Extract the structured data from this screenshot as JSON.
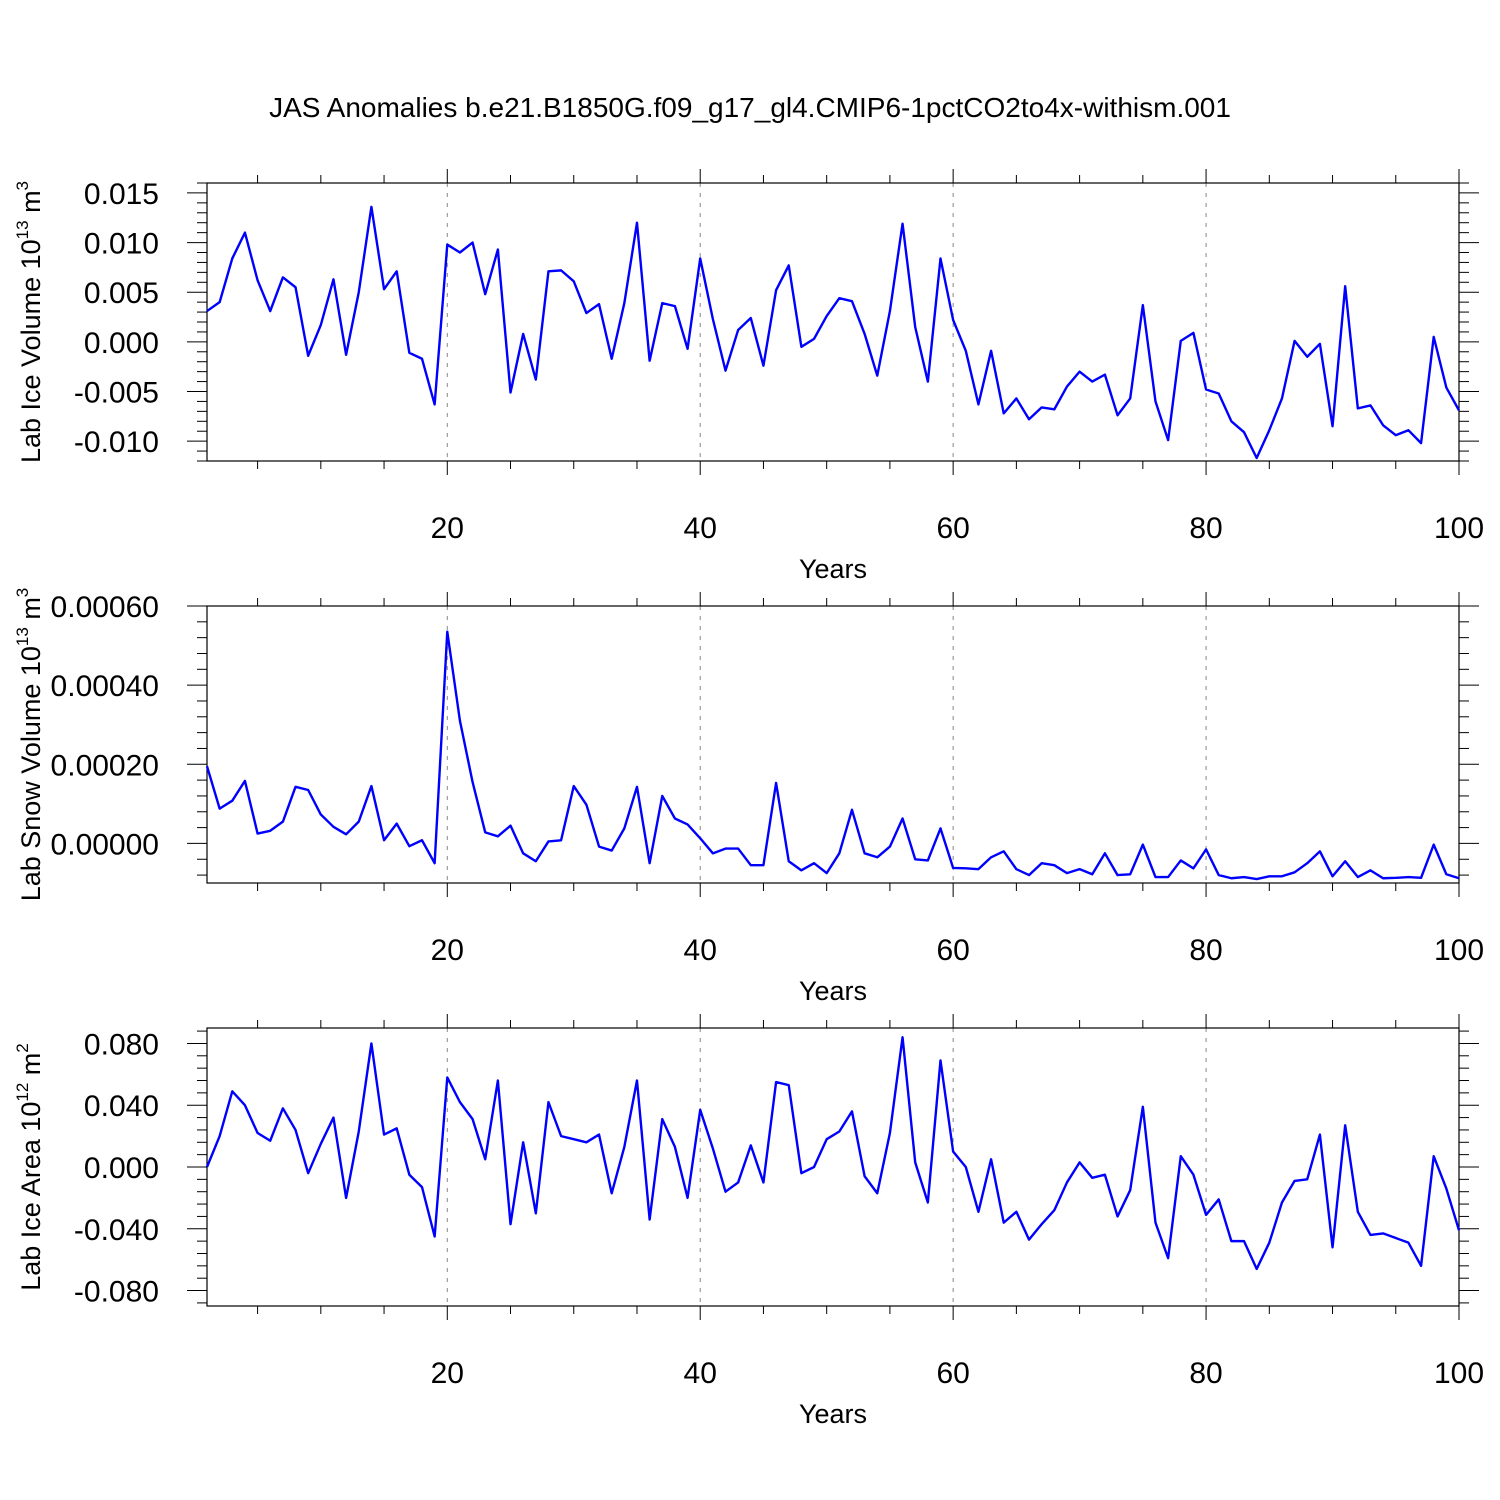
{
  "title": "JAS Anomalies b.e21.B1850G.f09_g17_gl4.CMIP6-1pctCO2to4x-withism.001",
  "colors": {
    "line": "#0000ff",
    "grid": "#888888",
    "axis": "#000000"
  },
  "chart_data": [
    {
      "type": "line",
      "ylabel": "Lab Ice Volume 10",
      "ylabel_sup": "13",
      "ylabel_unit": " m",
      "ylabel_unit_sup": "3",
      "xlabel": "Years",
      "xlim": [
        1,
        100
      ],
      "ylim": [
        -0.012,
        0.016
      ],
      "xticks": [
        20,
        40,
        60,
        80,
        100
      ],
      "xtick_labels": [
        "20",
        "40",
        "60",
        "80",
        "100"
      ],
      "yticks": [
        -0.01,
        -0.005,
        0.0,
        0.005,
        0.01,
        0.015
      ],
      "ytick_labels": [
        "-0.010",
        "-0.005",
        "0.000",
        "0.005",
        "0.010",
        "0.015"
      ],
      "grid": "vertical dashed at x ticks",
      "series": [
        {
          "x": [
            1,
            2,
            3,
            4,
            5,
            6,
            7,
            8,
            9,
            10,
            11,
            12,
            13,
            14,
            15,
            16,
            17,
            18,
            19,
            20,
            21,
            22,
            23,
            24,
            25,
            26,
            27,
            28,
            29,
            30,
            31,
            32,
            33,
            34,
            35,
            36,
            37,
            38,
            39,
            40,
            41,
            42,
            43,
            44,
            45,
            46,
            47,
            48,
            49,
            50,
            51,
            52,
            53,
            54,
            55,
            56,
            57,
            58,
            59,
            60,
            61,
            62,
            63,
            64,
            65,
            66,
            67,
            68,
            69,
            70,
            71,
            72,
            73,
            74,
            75,
            76,
            77,
            78,
            79,
            80,
            81,
            82,
            83,
            84,
            85,
            86,
            87,
            88,
            89,
            90,
            91,
            92,
            93,
            94,
            95,
            96,
            97,
            98,
            99,
            100
          ],
          "values": [
            0.0031,
            0.004,
            0.0084,
            0.011,
            0.0062,
            0.0031,
            0.0065,
            0.0055,
            -0.0014,
            0.0017,
            0.0063,
            -0.0013,
            0.005,
            0.0136,
            0.0053,
            0.0071,
            -0.0011,
            -0.0017,
            -0.0063,
            0.0098,
            0.009,
            0.01,
            0.0048,
            0.0093,
            -0.0051,
            0.0008,
            -0.0038,
            0.0071,
            0.0072,
            0.0061,
            0.0029,
            0.0038,
            -0.0017,
            0.0039,
            0.012,
            -0.0019,
            0.0039,
            0.0036,
            -0.0007,
            0.0084,
            0.0023,
            -0.0029,
            0.0012,
            0.0024,
            -0.0024,
            0.0052,
            0.0077,
            -0.0005,
            0.0003,
            0.0026,
            0.0044,
            0.0041,
            0.0008,
            -0.0034,
            0.0031,
            0.0119,
            0.0015,
            -0.004,
            0.0084,
            0.0022,
            -0.0009,
            -0.0063,
            -0.0009,
            -0.0072,
            -0.0057,
            -0.0078,
            -0.0066,
            -0.0068,
            -0.0045,
            -0.003,
            -0.004,
            -0.0033,
            -0.0074,
            -0.0057,
            0.0037,
            -0.006,
            -0.0099,
            0.0001,
            0.0009,
            -0.0048,
            -0.0052,
            -0.008,
            -0.0091,
            -0.0117,
            -0.0089,
            -0.0057,
            0.0001,
            -0.0015,
            -0.0002,
            -0.0085,
            0.0056,
            -0.0067,
            -0.0064,
            -0.0084,
            -0.0094,
            -0.0089,
            -0.0102,
            0.0005,
            -0.0046,
            -0.0069
          ]
        }
      ]
    },
    {
      "type": "line",
      "ylabel": "Lab Snow Volume 10",
      "ylabel_sup": "13",
      "ylabel_unit": " m",
      "ylabel_unit_sup": "3",
      "xlabel": "Years",
      "xlim": [
        1,
        100
      ],
      "ylim": [
        -0.0001,
        0.0006
      ],
      "xticks": [
        20,
        40,
        60,
        80,
        100
      ],
      "xtick_labels": [
        "20",
        "40",
        "60",
        "80",
        "100"
      ],
      "yticks": [
        0.0,
        0.0002,
        0.0004,
        0.0006
      ],
      "ytick_labels": [
        "0.00000",
        "0.00020",
        "0.00040",
        "0.00060"
      ],
      "grid": "vertical dashed at x ticks",
      "series": [
        {
          "x": [
            1,
            2,
            3,
            4,
            5,
            6,
            7,
            8,
            9,
            10,
            11,
            12,
            13,
            14,
            15,
            16,
            17,
            18,
            19,
            20,
            21,
            22,
            23,
            24,
            25,
            26,
            27,
            28,
            29,
            30,
            31,
            32,
            33,
            34,
            35,
            36,
            37,
            38,
            39,
            40,
            41,
            42,
            43,
            44,
            45,
            46,
            47,
            48,
            49,
            50,
            51,
            52,
            53,
            54,
            55,
            56,
            57,
            58,
            59,
            60,
            61,
            62,
            63,
            64,
            65,
            66,
            67,
            68,
            69,
            70,
            71,
            72,
            73,
            74,
            75,
            76,
            77,
            78,
            79,
            80,
            81,
            82,
            83,
            84,
            85,
            86,
            87,
            88,
            89,
            90,
            91,
            92,
            93,
            94,
            95,
            96,
            97,
            98,
            99,
            100
          ],
          "values": [
            0.000195,
            8.8e-05,
            0.000108,
            0.000158,
            2.5e-05,
            3.2e-05,
            5.5e-05,
            0.000143,
            0.000135,
            7.3e-05,
            4.2e-05,
            2.3e-05,
            5.5e-05,
            0.000145,
            8e-06,
            5e-05,
            -7e-06,
            8e-06,
            -5e-05,
            0.000535,
            0.00031,
            0.000155,
            2.8e-05,
            1.8e-05,
            4.5e-05,
            -2.5e-05,
            -4.5e-05,
            5e-06,
            8e-06,
            0.000145,
            9.8e-05,
            -8e-06,
            -1.8e-05,
            3.8e-05,
            0.000143,
            -5e-05,
            0.00012,
            6.3e-05,
            4.8e-05,
            1.3e-05,
            -2.5e-05,
            -1.3e-05,
            -1.3e-05,
            -5.5e-05,
            -5.5e-05,
            0.000153,
            -4.5e-05,
            -6.8e-05,
            -5e-05,
            -7.5e-05,
            -2.5e-05,
            8.5e-05,
            -2.5e-05,
            -3.5e-05,
            -8e-06,
            6.3e-05,
            -4e-05,
            -4.3e-05,
            3.8e-05,
            -6.2e-05,
            -6.3e-05,
            -6.5e-05,
            -3.5e-05,
            -2e-05,
            -6.5e-05,
            -8e-05,
            -5e-05,
            -5.5e-05,
            -7.5e-05,
            -6.5e-05,
            -7.8e-05,
            -2.5e-05,
            -8e-05,
            -7.8e-05,
            -3e-06,
            -8.5e-05,
            -8.5e-05,
            -4.3e-05,
            -6.3e-05,
            -1.5e-05,
            -8e-05,
            -8.8e-05,
            -8.5e-05,
            -9e-05,
            -8.3e-05,
            -8.3e-05,
            -7.3e-05,
            -5e-05,
            -2e-05,
            -8.3e-05,
            -4.5e-05,
            -8.5e-05,
            -6.8e-05,
            -8.8e-05,
            -8.7e-05,
            -8.5e-05,
            -8.7e-05,
            -3e-06,
            -7.8e-05,
            -8.8e-05
          ]
        }
      ]
    },
    {
      "type": "line",
      "ylabel": "Lab Ice Area 10",
      "ylabel_sup": "12",
      "ylabel_unit": " m",
      "ylabel_unit_sup": "2",
      "xlabel": "Years",
      "xlim": [
        1,
        100
      ],
      "ylim": [
        -0.09,
        0.09
      ],
      "xticks": [
        20,
        40,
        60,
        80,
        100
      ],
      "xtick_labels": [
        "20",
        "40",
        "60",
        "80",
        "100"
      ],
      "yticks": [
        -0.08,
        -0.04,
        0.0,
        0.04,
        0.08
      ],
      "ytick_labels": [
        "-0.080",
        "-0.040",
        "0.000",
        "0.040",
        "0.080"
      ],
      "grid": "vertical dashed at x ticks",
      "series": [
        {
          "x": [
            1,
            2,
            3,
            4,
            5,
            6,
            7,
            8,
            9,
            10,
            11,
            12,
            13,
            14,
            15,
            16,
            17,
            18,
            19,
            20,
            21,
            22,
            23,
            24,
            25,
            26,
            27,
            28,
            29,
            30,
            31,
            32,
            33,
            34,
            35,
            36,
            37,
            38,
            39,
            40,
            41,
            42,
            43,
            44,
            45,
            46,
            47,
            48,
            49,
            50,
            51,
            52,
            53,
            54,
            55,
            56,
            57,
            58,
            59,
            60,
            61,
            62,
            63,
            64,
            65,
            66,
            67,
            68,
            69,
            70,
            71,
            72,
            73,
            74,
            75,
            76,
            77,
            78,
            79,
            80,
            81,
            82,
            83,
            84,
            85,
            86,
            87,
            88,
            89,
            90,
            91,
            92,
            93,
            94,
            95,
            96,
            97,
            98,
            99,
            100
          ],
          "values": [
            0.0,
            0.02,
            0.049,
            0.04,
            0.022,
            0.017,
            0.038,
            0.024,
            -0.004,
            0.015,
            0.032,
            -0.02,
            0.023,
            0.08,
            0.021,
            0.025,
            -0.005,
            -0.013,
            -0.045,
            0.058,
            0.042,
            0.031,
            0.005,
            0.056,
            -0.037,
            0.016,
            -0.03,
            0.042,
            0.02,
            0.018,
            0.016,
            0.021,
            -0.017,
            0.013,
            0.056,
            -0.034,
            0.031,
            0.013,
            -0.02,
            0.037,
            0.012,
            -0.016,
            -0.01,
            0.014,
            -0.01,
            0.055,
            0.053,
            -0.004,
            0.0,
            0.018,
            0.023,
            0.036,
            -0.006,
            -0.017,
            0.022,
            0.084,
            0.003,
            -0.023,
            0.069,
            0.01,
            0.0,
            -0.029,
            0.005,
            -0.036,
            -0.029,
            -0.047,
            -0.037,
            -0.028,
            -0.01,
            0.003,
            -0.007,
            -0.005,
            -0.032,
            -0.015,
            0.039,
            -0.036,
            -0.059,
            0.007,
            -0.005,
            -0.031,
            -0.021,
            -0.048,
            -0.048,
            -0.066,
            -0.049,
            -0.023,
            -0.009,
            -0.008,
            0.021,
            -0.052,
            0.027,
            -0.029,
            -0.044,
            -0.043,
            -0.046,
            -0.049,
            -0.064,
            0.007,
            -0.014,
            -0.041
          ]
        }
      ]
    }
  ]
}
